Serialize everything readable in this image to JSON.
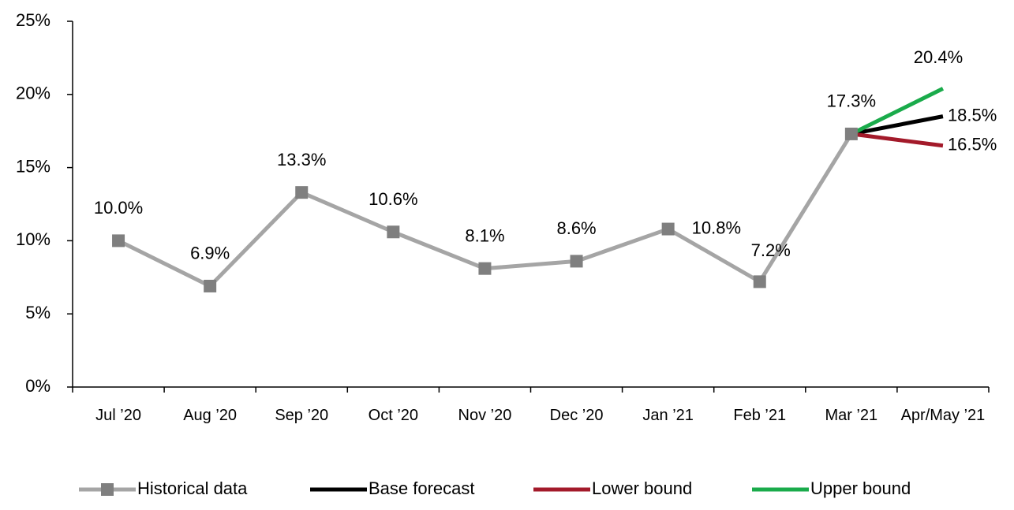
{
  "chart_data": {
    "type": "line",
    "categories": [
      "Jul ’20",
      "Aug ’20",
      "Sep ’20",
      "Oct ’20",
      "Nov ’20",
      "Dec ’20",
      "Jan ’21",
      "Feb ’21",
      "Mar ’21",
      "Apr/May ’21"
    ],
    "series": [
      {
        "name": "Historical data",
        "color": "#a5a5a5",
        "marker_color": "#7f7f7f",
        "values": [
          10.0,
          6.9,
          13.3,
          10.6,
          8.1,
          8.6,
          10.8,
          7.2,
          17.3,
          null
        ],
        "value_labels": [
          "10.0%",
          "6.9%",
          "13.3%",
          "10.6%",
          "8.1%",
          "8.6%",
          "10.8%",
          "7.2%",
          "17.3%",
          null
        ]
      },
      {
        "name": "Base forecast",
        "color": "#000000",
        "values": [
          null,
          null,
          null,
          null,
          null,
          null,
          null,
          null,
          17.3,
          18.5
        ],
        "value_labels": [
          null,
          null,
          null,
          null,
          null,
          null,
          null,
          null,
          null,
          "18.5%"
        ]
      },
      {
        "name": "Lower bound",
        "color": "#a31a2a",
        "values": [
          null,
          null,
          null,
          null,
          null,
          null,
          null,
          null,
          17.3,
          16.5
        ],
        "value_labels": [
          null,
          null,
          null,
          null,
          null,
          null,
          null,
          null,
          null,
          "16.5%"
        ]
      },
      {
        "name": "Upper bound",
        "color": "#1aab4b",
        "values": [
          null,
          null,
          null,
          null,
          null,
          null,
          null,
          null,
          17.3,
          20.4
        ],
        "value_labels": [
          null,
          null,
          null,
          null,
          null,
          null,
          null,
          null,
          null,
          "20.4%"
        ]
      }
    ],
    "ylim": [
      0,
      25
    ],
    "yticks": [
      {
        "value": 0,
        "label": "0%"
      },
      {
        "value": 5,
        "label": "5%"
      },
      {
        "value": 10,
        "label": "10%"
      },
      {
        "value": 15,
        "label": "15%"
      },
      {
        "value": 20,
        "label": "20%"
      },
      {
        "value": 25,
        "label": "25%"
      }
    ],
    "grid": false,
    "legend": "bottom"
  }
}
